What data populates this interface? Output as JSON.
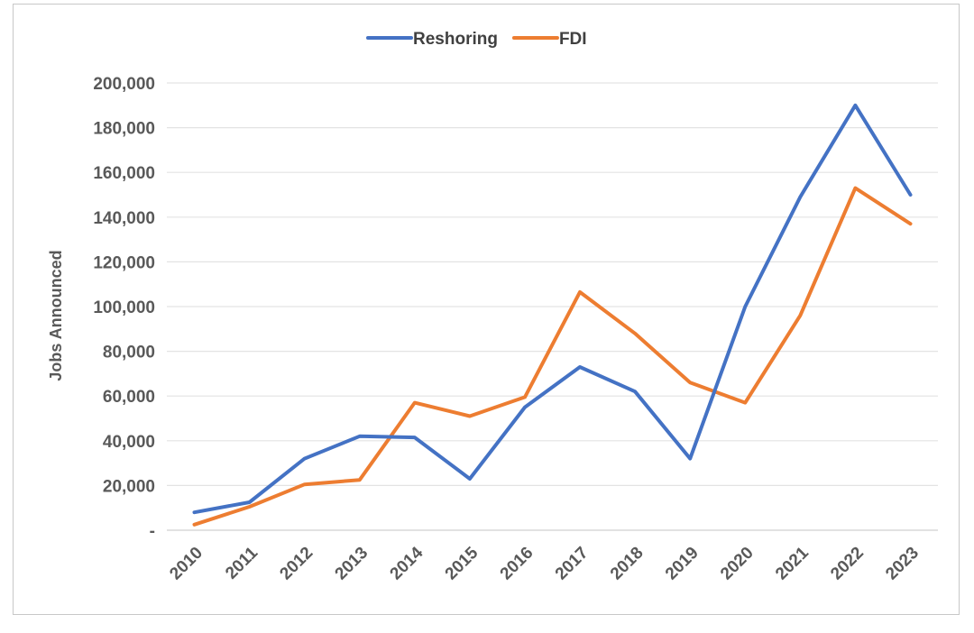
{
  "chart_data": {
    "type": "line",
    "ylabel": "Jobs Announced",
    "xlabel": "",
    "ylim": [
      0,
      200000
    ],
    "y_ticks": [
      {
        "value": 0,
        "label": "-"
      },
      {
        "value": 20000,
        "label": "20,000"
      },
      {
        "value": 40000,
        "label": "40,000"
      },
      {
        "value": 60000,
        "label": "60,000"
      },
      {
        "value": 80000,
        "label": "80,000"
      },
      {
        "value": 100000,
        "label": "100,000"
      },
      {
        "value": 120000,
        "label": "120,000"
      },
      {
        "value": 140000,
        "label": "140,000"
      },
      {
        "value": 160000,
        "label": "160,000"
      },
      {
        "value": 180000,
        "label": "180,000"
      },
      {
        "value": 200000,
        "label": "200,000"
      }
    ],
    "categories": [
      "2010",
      "2011",
      "2012",
      "2013",
      "2014",
      "2015",
      "2016",
      "2017",
      "2018",
      "2019",
      "2020",
      "2021",
      "2022",
      "2023"
    ],
    "grid": true,
    "legend_position": "top-center",
    "series": [
      {
        "name": "Reshoring",
        "color": "#4472C4",
        "values": [
          8000,
          12500,
          32000,
          42000,
          41500,
          23000,
          55000,
          73000,
          62000,
          32000,
          100000,
          149000,
          190000,
          150000
        ]
      },
      {
        "name": "FDI",
        "color": "#ED7D31",
        "values": [
          2500,
          10500,
          20500,
          22500,
          57000,
          51000,
          59500,
          106500,
          88000,
          66000,
          57000,
          96000,
          153000,
          137000
        ]
      }
    ]
  }
}
